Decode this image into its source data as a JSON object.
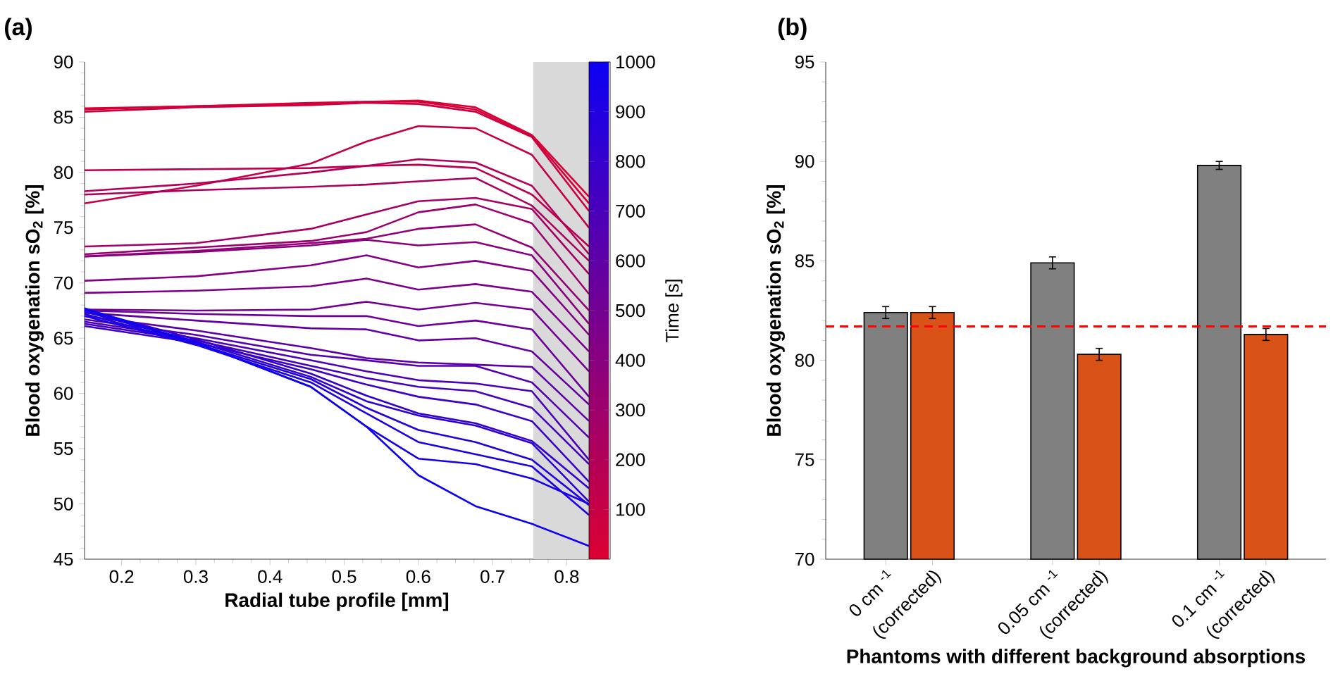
{
  "chart_data": [
    {
      "type": "line",
      "title": "(a)",
      "xlabel": "Radial tube profile [mm]",
      "ylabel": "Blood oxygenation sO$_{2}$ [%]",
      "clabel": "Time [s]",
      "xlim": [
        0.15,
        0.83
      ],
      "xticks": [
        0.2,
        0.3,
        0.4,
        0.5,
        0.6,
        0.7,
        0.8
      ],
      "ylim": [
        45,
        90
      ],
      "yticks": [
        45,
        50,
        55,
        60,
        65,
        70,
        75,
        80,
        85,
        90
      ],
      "clim": [
        0,
        1000
      ],
      "cticks": [
        100,
        200,
        300,
        400,
        500,
        600,
        700,
        800,
        900,
        1000
      ],
      "bands": [
        {
          "axis": "x",
          "from": 0.755,
          "to": 0.83,
          "color": "#d9d9d9"
        }
      ],
      "x": [
        0.15,
        0.3,
        0.455,
        0.53,
        0.6,
        0.677,
        0.753,
        0.83
      ],
      "series": [
        {
          "color": "#dc0032",
          "values": [
            85.8,
            86.0,
            86.3,
            86.4,
            86.5,
            85.9,
            83.4,
            77.8
          ]
        },
        {
          "color": "#d40039",
          "values": [
            85.7,
            86.0,
            86.2,
            86.4,
            86.4,
            85.7,
            83.3,
            77.2
          ]
        },
        {
          "color": "#cc0041",
          "values": [
            85.5,
            85.9,
            86.1,
            86.3,
            86.2,
            85.5,
            83.2,
            76.5
          ]
        },
        {
          "color": "#c40048",
          "values": [
            77.2,
            78.8,
            80.8,
            82.8,
            84.2,
            84.0,
            81.6,
            75.0
          ]
        },
        {
          "color": "#bc0050",
          "values": [
            80.2,
            80.3,
            80.4,
            80.6,
            80.7,
            80.4,
            78.0,
            73.3
          ]
        },
        {
          "color": "#b40057",
          "values": [
            78.3,
            79.0,
            80.0,
            80.6,
            81.2,
            80.9,
            78.8,
            72.6
          ]
        },
        {
          "color": "#ac005f",
          "values": [
            78.0,
            78.4,
            78.7,
            78.9,
            79.2,
            79.5,
            77.0,
            72.0
          ]
        },
        {
          "color": "#a40066",
          "values": [
            73.3,
            73.6,
            74.9,
            76.2,
            77.4,
            77.7,
            76.7,
            70.8
          ]
        },
        {
          "color": "#9c006e",
          "values": [
            72.6,
            73.2,
            73.8,
            74.6,
            76.4,
            77.1,
            75.4,
            69.0
          ]
        },
        {
          "color": "#940075",
          "values": [
            72.4,
            72.9,
            73.6,
            74.0,
            74.9,
            75.3,
            73.2,
            67.5
          ]
        },
        {
          "color": "#8c007d",
          "values": [
            72.4,
            72.8,
            73.4,
            73.9,
            73.4,
            73.7,
            72.5,
            66.3
          ]
        },
        {
          "color": "#840084",
          "values": [
            70.2,
            70.6,
            71.6,
            72.5,
            71.4,
            72.0,
            71.1,
            65.3
          ]
        },
        {
          "color": "#7c008c",
          "values": [
            69.1,
            69.3,
            69.7,
            70.4,
            69.4,
            69.9,
            69.2,
            63.8
          ]
        },
        {
          "color": "#740093",
          "values": [
            67.6,
            67.5,
            67.6,
            68.3,
            67.6,
            68.2,
            67.6,
            62.0
          ]
        },
        {
          "color": "#6c009b",
          "values": [
            67.5,
            67.2,
            67.0,
            67.0,
            66.1,
            66.6,
            65.8,
            59.7
          ]
        },
        {
          "color": "#6400a2",
          "values": [
            67.3,
            66.6,
            65.9,
            65.8,
            64.8,
            65.0,
            63.8,
            59.0
          ]
        },
        {
          "color": "#5c00aa",
          "values": [
            67.0,
            65.7,
            64.1,
            63.2,
            62.8,
            62.6,
            62.4,
            57.5
          ]
        },
        {
          "color": "#5400b1",
          "values": [
            66.7,
            65.3,
            63.5,
            63.0,
            62.5,
            62.5,
            61.0,
            56.0
          ]
        },
        {
          "color": "#4c00b9",
          "values": [
            66.5,
            65.0,
            63.0,
            62.0,
            61.2,
            60.9,
            60.2,
            54.0
          ]
        },
        {
          "color": "#4400c0",
          "values": [
            66.3,
            64.8,
            62.5,
            61.4,
            60.6,
            60.2,
            58.7,
            53.6
          ]
        },
        {
          "color": "#3c00c8",
          "values": [
            66.1,
            64.6,
            62.2,
            60.8,
            59.7,
            59.0,
            57.5,
            52.0
          ]
        },
        {
          "color": "#3400cf",
          "values": [
            67.6,
            64.9,
            61.8,
            59.8,
            58.2,
            57.3,
            55.7,
            51.4
          ]
        },
        {
          "color": "#2c00d7",
          "values": [
            67.4,
            64.7,
            61.5,
            59.3,
            58.0,
            57.1,
            55.5,
            50.2
          ]
        },
        {
          "color": "#2400de",
          "values": [
            67.2,
            64.5,
            61.3,
            58.7,
            56.7,
            55.6,
            54.0,
            49.9
          ]
        },
        {
          "color": "#1c00e6",
          "values": [
            67.0,
            64.4,
            61.0,
            58.2,
            55.6,
            54.5,
            53.4,
            49.0
          ]
        },
        {
          "color": "#1400ed",
          "values": [
            67.5,
            64.6,
            60.6,
            57.0,
            54.1,
            53.6,
            52.3,
            50.0
          ]
        },
        {
          "color": "#0c00f5",
          "values": [
            67.7,
            64.6,
            60.6,
            57.0,
            52.6,
            49.8,
            48.2,
            46.2
          ]
        }
      ]
    },
    {
      "type": "bar",
      "title": "(b)",
      "xlabel": "Phantoms with different background absorptions",
      "ylabel": "Blood oxygenation sO$_{2}$ [%]",
      "categories": [
        "0 cm $^{-1}$",
        "0.05 cm $^{-1}$",
        "0.1 cm $^{-1}$"
      ],
      "ylim": [
        70,
        95
      ],
      "yticks": [
        70,
        75,
        80,
        85,
        90,
        95
      ],
      "ref_lines": [
        {
          "axis": "y",
          "value": 81.7,
          "color": "#ff0000",
          "line_style": "dashed"
        }
      ],
      "series": [
        {
          "color": "#808080",
          "values": [
            82.4,
            84.9,
            89.8
          ],
          "errors": [
            0.3,
            0.3,
            0.2
          ]
        },
        {
          "name": "(corrected)",
          "color": "#d95319",
          "values": [
            82.4,
            80.3,
            81.3
          ],
          "errors": [
            0.3,
            0.3,
            0.3
          ]
        }
      ]
    }
  ]
}
